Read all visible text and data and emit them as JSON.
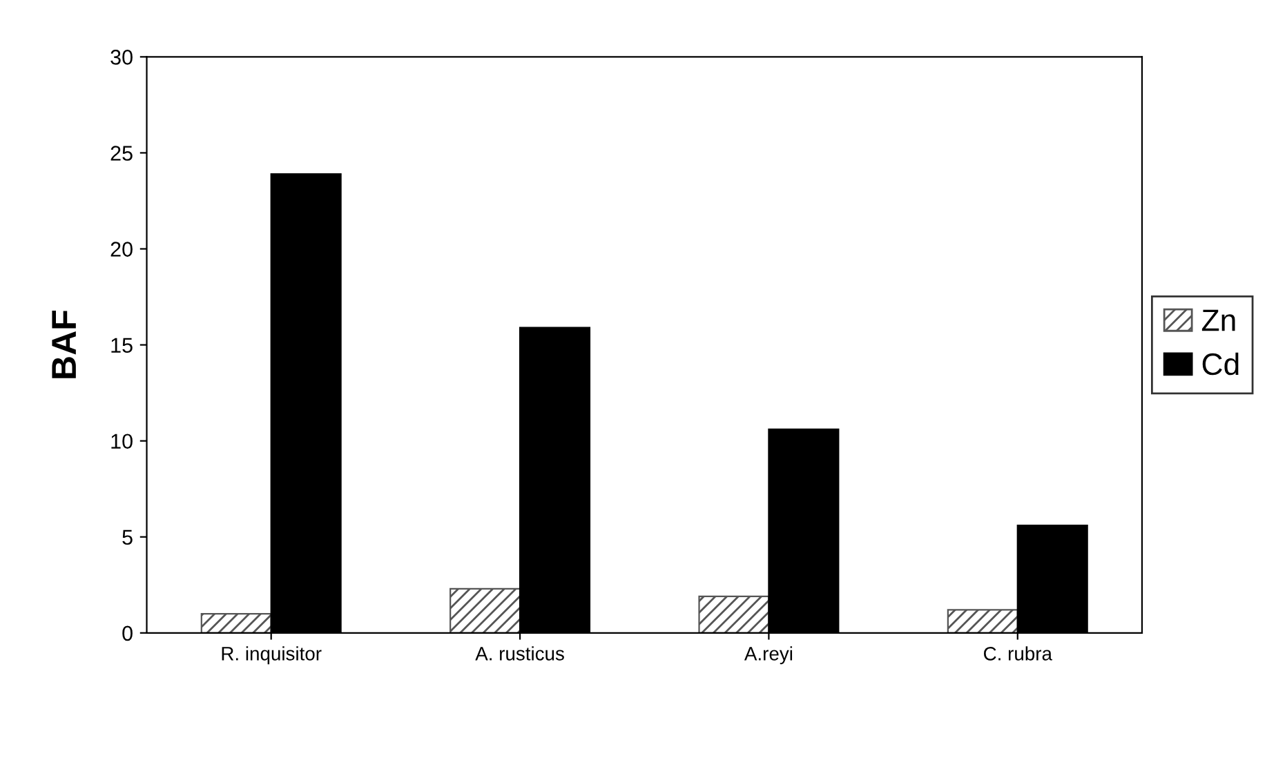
{
  "chart_data": {
    "type": "bar",
    "ylabel": "BAF",
    "categories": [
      "R. inquisitor",
      "A. rusticus",
      "A.reyi",
      "C. rubra"
    ],
    "series": [
      {
        "name": "Zn",
        "color": "#555555",
        "values": [
          1.0,
          2.3,
          1.9,
          1.2
        ]
      },
      {
        "name": "Cd",
        "color": "#000000",
        "values": [
          23.9,
          15.9,
          10.6,
          5.6
        ]
      }
    ],
    "ylim": [
      0,
      30
    ],
    "yticks": [
      0,
      5,
      10,
      15,
      20,
      25,
      30
    ],
    "grid": false,
    "legend": "right"
  }
}
